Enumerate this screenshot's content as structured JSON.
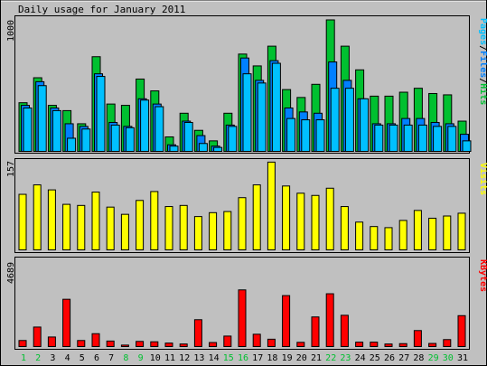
{
  "title": "Daily usage for January 2011",
  "colors": {
    "background": "#c0c0c0",
    "hits": "#00c030",
    "files": "#0080ff",
    "pages": "#00c0ff",
    "visits": "#ffff00",
    "kbytes": "#ff0000",
    "weekend_day": "#00c030",
    "weekday": "#000000",
    "slash": "#000000"
  },
  "chart_data": [
    {
      "type": "bar",
      "panel": "pages-files-hits",
      "ymax_label": "1000",
      "ylim": [
        0,
        1000
      ],
      "legend": {
        "pages": "Pages",
        "files": "Files",
        "hits": "Hits",
        "sep": "/"
      },
      "categories": [
        "1",
        "2",
        "3",
        "4",
        "5",
        "6",
        "7",
        "8",
        "9",
        "10",
        "11",
        "12",
        "13",
        "14",
        "15",
        "16",
        "17",
        "18",
        "19",
        "20",
        "21",
        "22",
        "23",
        "24",
        "25",
        "26",
        "27",
        "28",
        "29",
        "30",
        "31"
      ],
      "series": [
        {
          "name": "Hits",
          "values": [
            370,
            560,
            350,
            310,
            210,
            720,
            360,
            350,
            550,
            460,
            110,
            290,
            160,
            80,
            290,
            740,
            650,
            800,
            470,
            410,
            510,
            1000,
            800,
            620,
            420,
            420,
            450,
            480,
            440,
            430,
            230
          ]
        },
        {
          "name": "Files",
          "values": [
            350,
            530,
            330,
            210,
            190,
            590,
            220,
            190,
            400,
            360,
            50,
            230,
            120,
            40,
            200,
            710,
            540,
            690,
            330,
            300,
            290,
            680,
            540,
            400,
            210,
            210,
            250,
            250,
            220,
            210,
            130
          ]
        },
        {
          "name": "Pages",
          "values": [
            330,
            500,
            310,
            100,
            170,
            570,
            200,
            180,
            390,
            340,
            40,
            220,
            60,
            30,
            190,
            590,
            520,
            670,
            250,
            240,
            240,
            480,
            480,
            400,
            200,
            200,
            200,
            200,
            190,
            190,
            80
          ]
        }
      ]
    },
    {
      "type": "bar",
      "panel": "visits",
      "ymax_label": "157",
      "ylim": [
        0,
        157
      ],
      "legend": {
        "visits": "Visits"
      },
      "categories": [
        "1",
        "2",
        "3",
        "4",
        "5",
        "6",
        "7",
        "8",
        "9",
        "10",
        "11",
        "12",
        "13",
        "14",
        "15",
        "16",
        "17",
        "18",
        "19",
        "20",
        "21",
        "22",
        "23",
        "24",
        "25",
        "26",
        "27",
        "28",
        "29",
        "30",
        "31"
      ],
      "series": [
        {
          "name": "Visits",
          "values": [
            100,
            117,
            108,
            82,
            80,
            104,
            77,
            64,
            89,
            105,
            78,
            80,
            60,
            67,
            69,
            94,
            117,
            158,
            115,
            102,
            98,
            111,
            78,
            50,
            42,
            40,
            53,
            71,
            57,
            61,
            66
          ]
        }
      ]
    },
    {
      "type": "bar",
      "panel": "kbytes",
      "ymax_label": "4689",
      "ylim": [
        0,
        4689
      ],
      "legend": {
        "kbytes": "KBytes"
      },
      "categories": [
        "1",
        "2",
        "3",
        "4",
        "5",
        "6",
        "7",
        "8",
        "9",
        "10",
        "11",
        "12",
        "13",
        "14",
        "15",
        "16",
        "17",
        "18",
        "19",
        "20",
        "21",
        "22",
        "23",
        "24",
        "25",
        "26",
        "27",
        "28",
        "29",
        "30",
        "31"
      ],
      "series": [
        {
          "name": "KBytes",
          "values": [
            330,
            1060,
            520,
            2570,
            330,
            700,
            300,
            80,
            280,
            260,
            190,
            140,
            1460,
            220,
            570,
            3080,
            670,
            400,
            2770,
            230,
            1610,
            2870,
            1700,
            240,
            240,
            140,
            160,
            870,
            170,
            380,
            1680
          ]
        }
      ]
    }
  ],
  "days": [
    "1",
    "2",
    "3",
    "4",
    "5",
    "6",
    "7",
    "8",
    "9",
    "10",
    "11",
    "12",
    "13",
    "14",
    "15",
    "16",
    "17",
    "18",
    "19",
    "20",
    "21",
    "22",
    "23",
    "24",
    "25",
    "26",
    "27",
    "28",
    "29",
    "30",
    "31"
  ],
  "weekend_days": [
    "1",
    "2",
    "8",
    "9",
    "15",
    "16",
    "22",
    "23",
    "29",
    "30"
  ]
}
